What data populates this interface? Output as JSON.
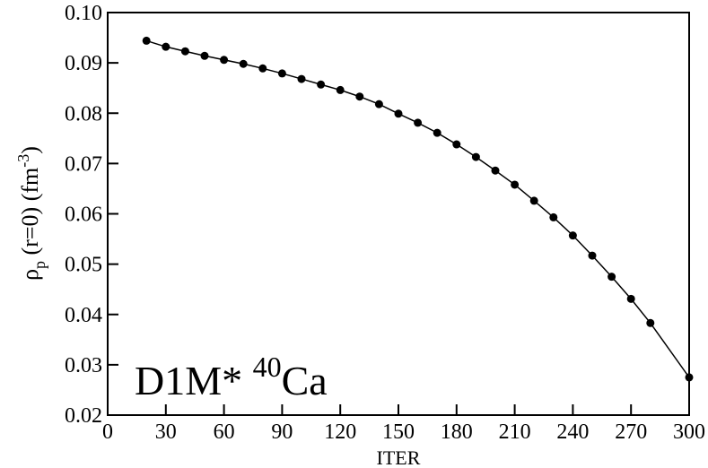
{
  "chart_data": {
    "type": "line",
    "xlabel": "ITER",
    "ylabel_parts": [
      "ρ",
      "p",
      " (r=0) (fm",
      "-3",
      ")"
    ],
    "annotation_parts": [
      "D1M* ",
      "40",
      "Ca"
    ],
    "x": [
      20,
      30,
      40,
      50,
      60,
      70,
      80,
      90,
      100,
      110,
      120,
      130,
      140,
      150,
      160,
      170,
      180,
      190,
      200,
      210,
      220,
      230,
      240,
      250,
      260,
      270,
      280,
      300
    ],
    "series": [
      {
        "color": "#000000",
        "values": [
          0.0944,
          0.0932,
          0.0923,
          0.0914,
          0.0906,
          0.0898,
          0.0889,
          0.0879,
          0.0868,
          0.0857,
          0.0846,
          0.0833,
          0.0818,
          0.0799,
          0.0781,
          0.0761,
          0.0738,
          0.0713,
          0.0686,
          0.0658,
          0.0626,
          0.0593,
          0.0557,
          0.0517,
          0.0475,
          0.0431,
          0.0383,
          0.0275
        ]
      }
    ],
    "xlim": [
      0,
      300
    ],
    "xticks": [
      0,
      30,
      60,
      90,
      120,
      150,
      180,
      210,
      240,
      270,
      300
    ],
    "ylim": [
      0.02,
      0.1
    ],
    "yticks": [
      0.02,
      0.03,
      0.04,
      0.05,
      0.06,
      0.07,
      0.08,
      0.09,
      {
        "value": 0.1,
        "label": "0.10"
      }
    ]
  }
}
